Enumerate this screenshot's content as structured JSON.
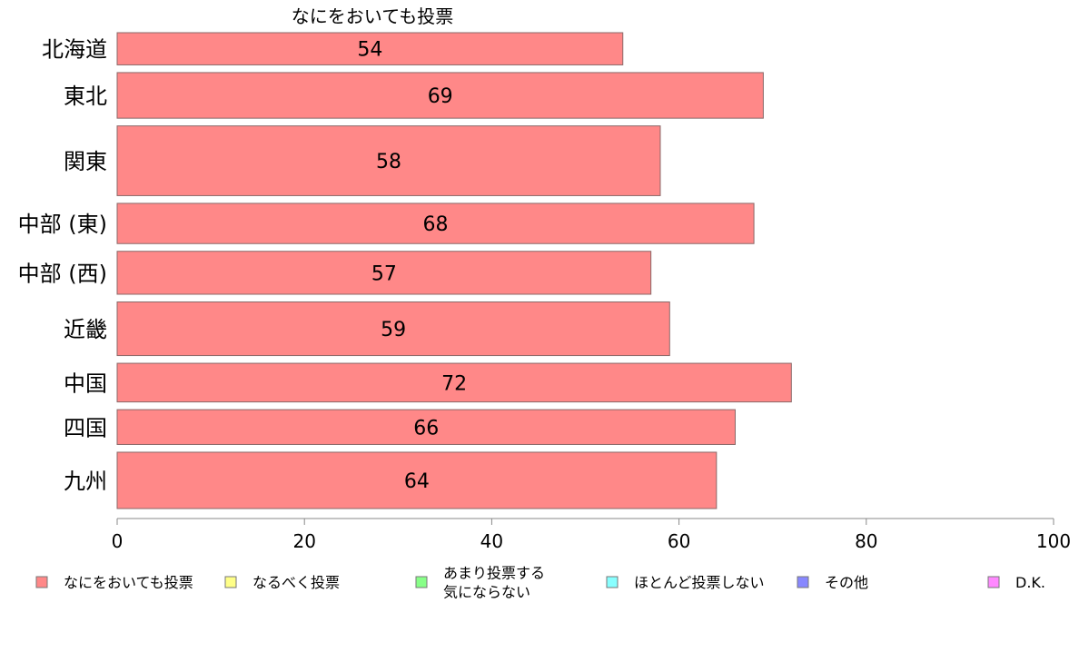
{
  "chart_data": {
    "type": "bar",
    "orientation": "horizontal",
    "stacked": true,
    "title": "なにをおいても投票",
    "categories": [
      "北海道",
      "東北",
      "関東",
      "中部 (東)",
      "中部 (西)",
      "近畿",
      "中国",
      "四国",
      "九州"
    ],
    "series": [
      {
        "name": "なにをおいても投票",
        "color": "#ff8888",
        "values": [
          54,
          69,
          58,
          68,
          57,
          59,
          72,
          66,
          64
        ],
        "labels": [
          "54",
          "69",
          "58",
          "68",
          "57",
          "59",
          "72",
          "66",
          "64"
        ]
      }
    ],
    "legend": {
      "placement": "bottom",
      "items": [
        {
          "lines": [
            "なにをおいても投票"
          ],
          "color": "#ff8888"
        },
        {
          "lines": [
            "なるべく投票"
          ],
          "color": "#ffff88"
        },
        {
          "lines": [
            "あまり投票する",
            "気にならない"
          ],
          "color": "#88ff88"
        },
        {
          "lines": [
            "ほとんど投票しない"
          ],
          "color": "#88ffff"
        },
        {
          "lines": [
            "その他"
          ],
          "color": "#8888ff"
        },
        {
          "lines": [
            "D.K."
          ],
          "color": "#ff88ff"
        }
      ]
    },
    "xlim": [
      0,
      100
    ],
    "xticks": [
      0,
      20,
      40,
      60,
      80,
      100
    ],
    "xtick_labels": [
      "0",
      "20",
      "40",
      "60",
      "80",
      "100"
    ],
    "grid": false,
    "bar_widths_relative": [
      0.6,
      0.85,
      1.3,
      0.75,
      0.8,
      1.0,
      0.72,
      0.65,
      1.05
    ]
  }
}
